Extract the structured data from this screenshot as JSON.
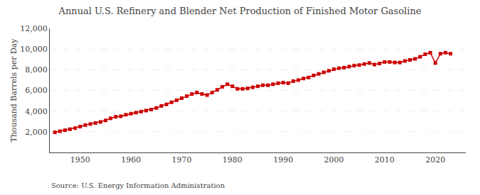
{
  "chart_data": {
    "type": "line",
    "title": "Annual U.S. Refinery and Blender Net Production of Finished Motor Gasoline",
    "ylabel": "Thousand Barrels per Day",
    "annotations": [
      "Source: U.S. Energy Information Administration"
    ],
    "color": "#cc0000",
    "marker": "square",
    "grid": true,
    "xlim": [
      1944,
      2026
    ],
    "xticks": [
      1950,
      1960,
      1970,
      1980,
      1990,
      2000,
      2010,
      2020
    ],
    "ylim": [
      0,
      12000
    ],
    "yticks": [
      {
        "value": 2000,
        "label": "2,000"
      },
      {
        "value": 4000,
        "label": "4,000"
      },
      {
        "value": 6000,
        "label": "6,000"
      },
      {
        "value": 8000,
        "label": "8,000"
      },
      {
        "value": 10000,
        "label": "10,000"
      },
      {
        "value": 12000,
        "label": "12,000"
      }
    ],
    "x": [
      1945,
      1946,
      1947,
      1948,
      1949,
      1950,
      1951,
      1952,
      1953,
      1954,
      1955,
      1956,
      1957,
      1958,
      1959,
      1960,
      1961,
      1962,
      1963,
      1964,
      1965,
      1966,
      1967,
      1968,
      1969,
      1970,
      1971,
      1972,
      1973,
      1974,
      1975,
      1976,
      1977,
      1978,
      1979,
      1980,
      1981,
      1982,
      1983,
      1984,
      1985,
      1986,
      1987,
      1988,
      1989,
      1990,
      1991,
      1992,
      1993,
      1994,
      1995,
      1996,
      1997,
      1998,
      1999,
      2000,
      2001,
      2002,
      2003,
      2004,
      2005,
      2006,
      2007,
      2008,
      2009,
      2010,
      2011,
      2012,
      2013,
      2014,
      2015,
      2016,
      2017,
      2018,
      2019,
      2020,
      2021,
      2022,
      2023
    ],
    "values": [
      1950,
      2050,
      2150,
      2250,
      2350,
      2500,
      2650,
      2750,
      2850,
      2950,
      3100,
      3300,
      3450,
      3500,
      3650,
      3750,
      3850,
      3950,
      4050,
      4150,
      4300,
      4500,
      4650,
      4850,
      5050,
      5250,
      5450,
      5650,
      5800,
      5650,
      5550,
      5800,
      6050,
      6350,
      6600,
      6400,
      6150,
      6150,
      6200,
      6300,
      6400,
      6500,
      6500,
      6600,
      6700,
      6750,
      6700,
      6900,
      7000,
      7150,
      7250,
      7450,
      7600,
      7750,
      7900,
      8050,
      8150,
      8200,
      8300,
      8400,
      8450,
      8550,
      8650,
      8500,
      8600,
      8750,
      8750,
      8700,
      8700,
      8850,
      8950,
      9050,
      9250,
      9500,
      9650,
      8650,
      9550,
      9650,
      9550
    ]
  }
}
